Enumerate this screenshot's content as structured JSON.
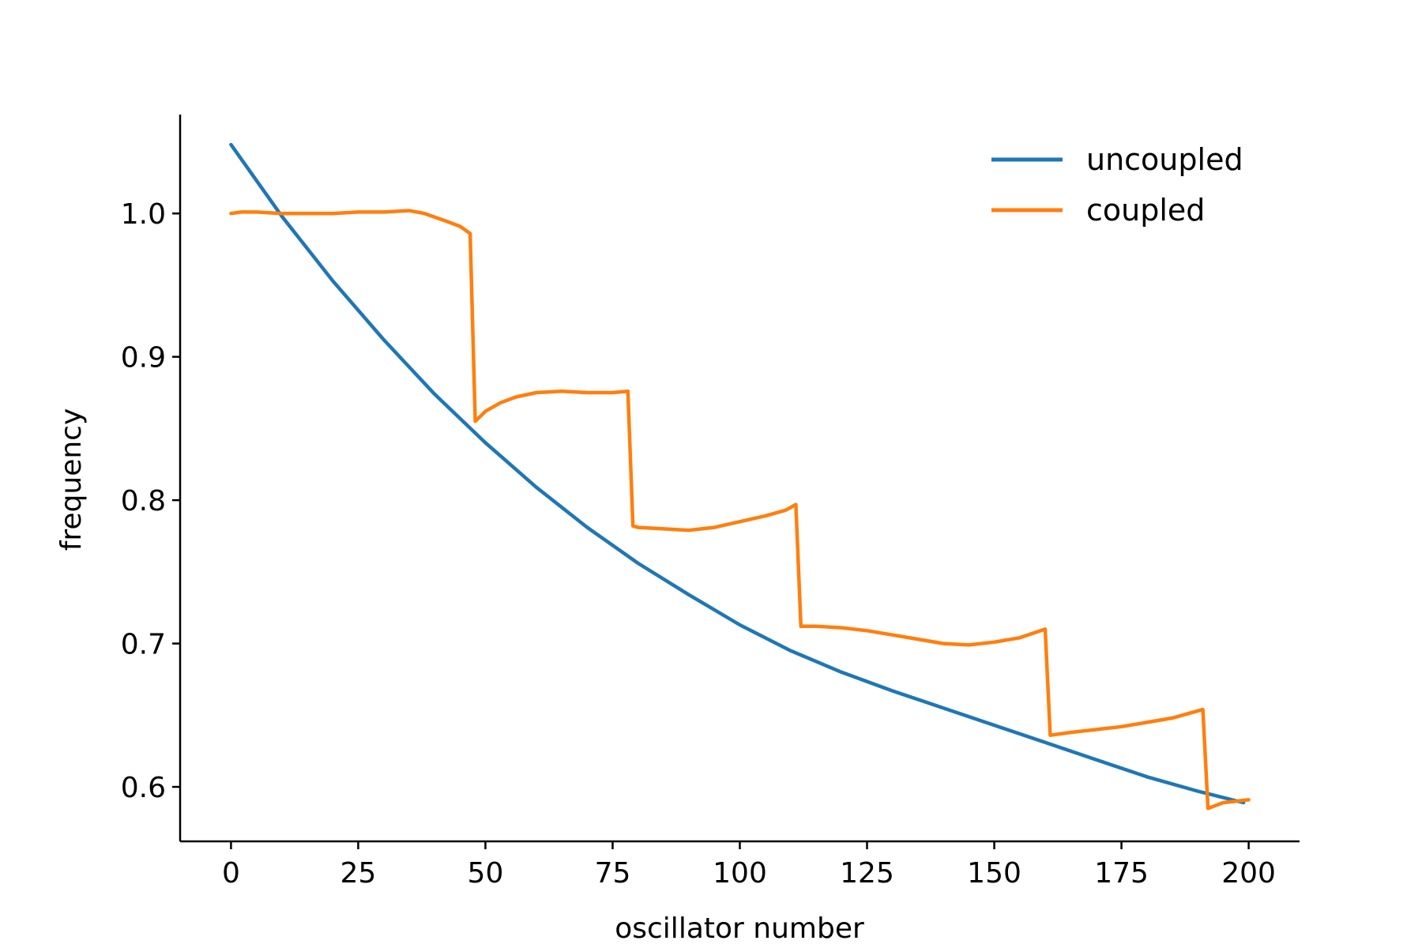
{
  "chart_data": {
    "type": "line",
    "title": "",
    "xlabel": "oscillator number",
    "ylabel": "frequency",
    "xlim": [
      -10,
      210
    ],
    "ylim": [
      0.562,
      1.069
    ],
    "xticks": [
      0,
      25,
      50,
      75,
      100,
      125,
      150,
      175,
      200
    ],
    "yticks": [
      0.6,
      0.7,
      0.8,
      0.9,
      1.0
    ],
    "xtick_labels": [
      "0",
      "25",
      "50",
      "75",
      "100",
      "125",
      "150",
      "175",
      "200"
    ],
    "ytick_labels": [
      "0.6",
      "0.7",
      "0.8",
      "0.9",
      "1.0"
    ],
    "grid": false,
    "legend_position": "top-right",
    "series": [
      {
        "name": "uncoupled",
        "color": "#1f77b4",
        "x": [
          0,
          10,
          20,
          30,
          40,
          50,
          60,
          70,
          80,
          90,
          100,
          110,
          120,
          130,
          140,
          150,
          160,
          170,
          180,
          190,
          199
        ],
        "y": [
          1.048,
          0.998,
          0.953,
          0.912,
          0.874,
          0.84,
          0.809,
          0.781,
          0.756,
          0.734,
          0.713,
          0.695,
          0.68,
          0.667,
          0.655,
          0.643,
          0.631,
          0.619,
          0.607,
          0.597,
          0.589
        ]
      },
      {
        "name": "coupled",
        "color": "#ff7f0e",
        "x": [
          0,
          2,
          5,
          10,
          15,
          20,
          25,
          30,
          35,
          38,
          42,
          45,
          47,
          48,
          50,
          53,
          56,
          60,
          65,
          70,
          75,
          78,
          79,
          80,
          85,
          90,
          95,
          100,
          105,
          109,
          111,
          112,
          115,
          120,
          125,
          130,
          135,
          140,
          145,
          150,
          155,
          160,
          161,
          165,
          170,
          175,
          180,
          185,
          191,
          192,
          195,
          200
        ],
        "y": [
          1.0,
          1.001,
          1.001,
          1.0,
          1.0,
          1.0,
          1.001,
          1.001,
          1.002,
          1.0,
          0.995,
          0.991,
          0.986,
          0.855,
          0.862,
          0.868,
          0.872,
          0.875,
          0.876,
          0.875,
          0.875,
          0.876,
          0.782,
          0.781,
          0.78,
          0.779,
          0.781,
          0.785,
          0.789,
          0.793,
          0.797,
          0.712,
          0.712,
          0.711,
          0.709,
          0.706,
          0.703,
          0.7,
          0.699,
          0.701,
          0.704,
          0.71,
          0.636,
          0.638,
          0.64,
          0.642,
          0.645,
          0.648,
          0.654,
          0.585,
          0.589,
          0.591
        ]
      }
    ]
  }
}
